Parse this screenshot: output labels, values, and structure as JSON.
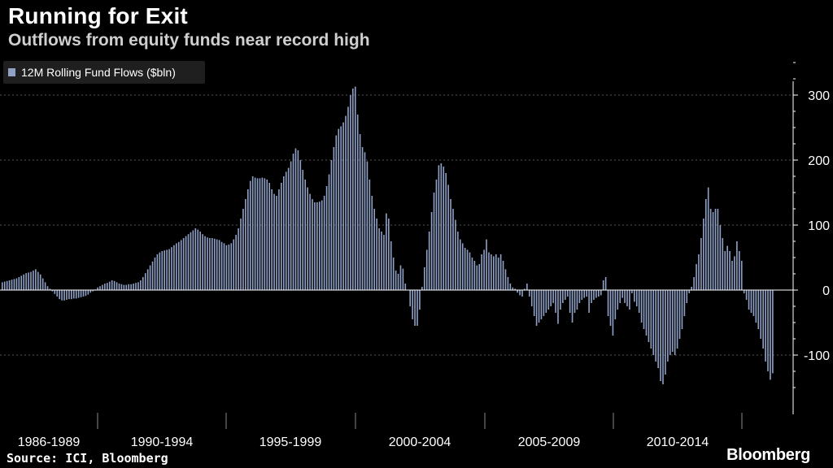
{
  "title": "Running for Exit",
  "subtitle": "Outflows from equity funds near record high",
  "source": "Source: ICI, Bloomberg",
  "brand": "Bloomberg",
  "colors": {
    "background": "#000000",
    "bar": "#8fa1c7",
    "grid": "#555555"
  },
  "chart_data": {
    "type": "bar",
    "ylim": [
      -160,
      360
    ],
    "y_ticks": [
      -100,
      0,
      100,
      200,
      300
    ],
    "y_tick_labels": [
      "-100",
      "0",
      "100",
      "200",
      "300"
    ],
    "grid": true,
    "legend_position": "top-left",
    "x_axis_labels": [
      "1986-1989",
      "1990-1994",
      "1995-1999",
      "2000-2004",
      "2005-2009",
      "2010-2014"
    ],
    "series": [
      {
        "name": "12M Rolling Fund Flows ($bln)",
        "values": [
          12,
          13,
          14,
          15,
          16,
          17,
          18,
          20,
          22,
          24,
          26,
          27,
          28,
          30,
          32,
          28,
          24,
          18,
          12,
          6,
          2,
          -2,
          -6,
          -10,
          -14,
          -16,
          -16,
          -15,
          -14,
          -14,
          -13,
          -13,
          -12,
          -11,
          -10,
          -9,
          -7,
          -4,
          -2,
          1,
          4,
          6,
          8,
          10,
          11,
          13,
          15,
          14,
          12,
          10,
          9,
          8,
          8,
          9,
          9,
          10,
          11,
          12,
          15,
          20,
          26,
          32,
          38,
          44,
          50,
          55,
          58,
          60,
          61,
          62,
          63,
          66,
          69,
          72,
          74,
          77,
          80,
          83,
          86,
          89,
          92,
          95,
          93,
          90,
          86,
          83,
          81,
          80,
          80,
          79,
          78,
          77,
          74,
          72,
          69,
          70,
          72,
          78,
          85,
          95,
          110,
          125,
          140,
          155,
          168,
          175,
          173,
          172,
          172,
          173,
          172,
          170,
          165,
          155,
          148,
          145,
          155,
          165,
          175,
          182,
          188,
          198,
          210,
          218,
          215,
          200,
          185,
          170,
          158,
          148,
          140,
          135,
          135,
          136,
          138,
          145,
          160,
          178,
          200,
          220,
          238,
          248,
          252,
          258,
          268,
          282,
          300,
          310,
          313,
          270,
          240,
          220,
          212,
          198,
          170,
          145,
          125,
          110,
          95,
          90,
          85,
          118,
          110,
          75,
          50,
          30,
          25,
          38,
          33,
          10,
          0,
          -25,
          -45,
          -55,
          -55,
          -30,
          5,
          35,
          62,
          90,
          120,
          150,
          170,
          192,
          195,
          190,
          180,
          162,
          140,
          125,
          108,
          90,
          78,
          72,
          65,
          62,
          58,
          50,
          45,
          38,
          40,
          55,
          62,
          78,
          58,
          55,
          52,
          55,
          50,
          55,
          45,
          32,
          20,
          10,
          4,
          2,
          -4,
          -8,
          -10,
          2,
          10,
          -10,
          -25,
          -40,
          -55,
          -50,
          -45,
          -40,
          -35,
          -30,
          -25,
          -20,
          -35,
          -52,
          -30,
          -20,
          -15,
          -10,
          -35,
          -50,
          -35,
          -30,
          -20,
          -15,
          -12,
          -10,
          -35,
          -20,
          -15,
          -12,
          -10,
          -8,
          15,
          20,
          -40,
          -55,
          -70,
          -45,
          -30,
          -20,
          -12,
          -20,
          -25,
          -30,
          -5,
          -18,
          -25,
          -35,
          -50,
          -60,
          -70,
          -80,
          -90,
          -100,
          -110,
          -120,
          -140,
          -145,
          -130,
          -110,
          -100,
          -95,
          -100,
          -90,
          -75,
          -60,
          -40,
          -20,
          -5,
          5,
          20,
          40,
          55,
          80,
          110,
          140,
          158,
          125,
          120,
          125,
          125,
          100,
          80,
          60,
          68,
          60,
          45,
          52,
          75,
          60,
          45,
          -5,
          -15,
          -30,
          -35,
          -40,
          -50,
          -60,
          -75,
          -90,
          -110,
          -125,
          -138,
          -128
        ]
      }
    ]
  }
}
